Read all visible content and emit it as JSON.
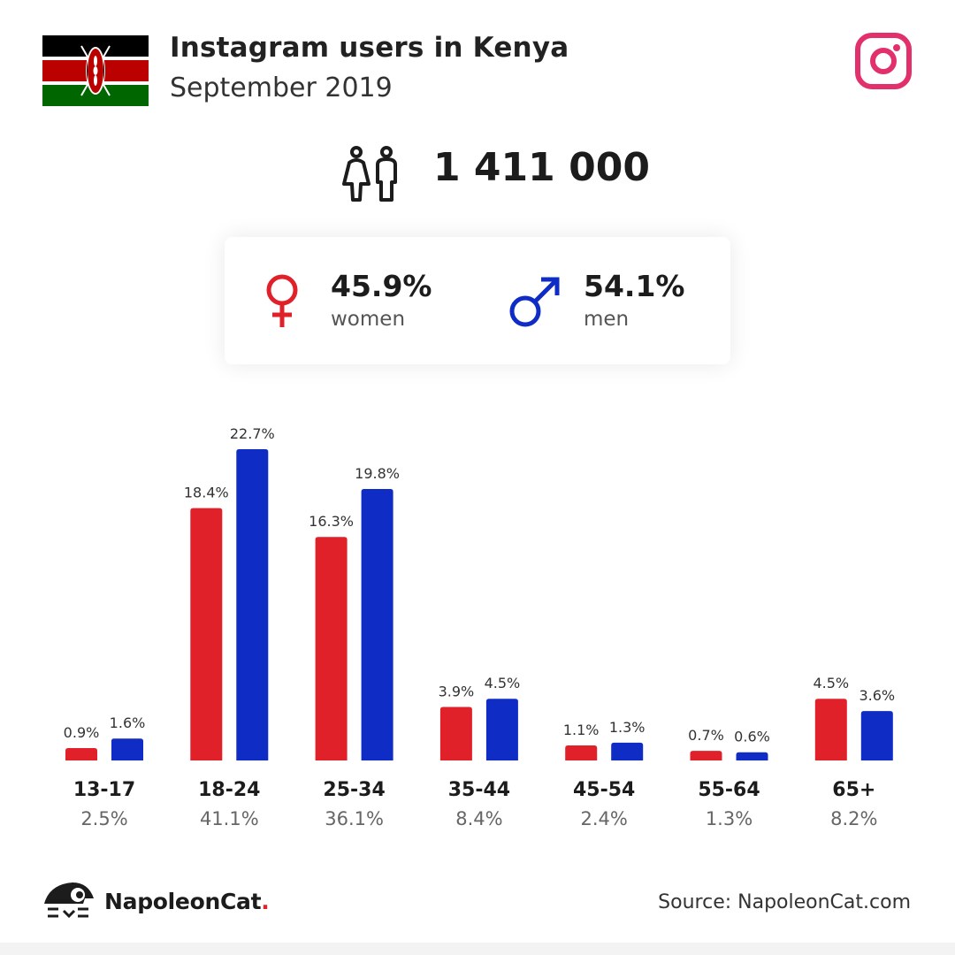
{
  "header": {
    "title": "Instagram users in Kenya",
    "subtitle": "September 2019"
  },
  "total_users": "1 411 000",
  "gender": {
    "women": {
      "percent": "45.9%",
      "label": "women"
    },
    "men": {
      "percent": "54.1%",
      "label": "men"
    }
  },
  "chart_data": {
    "type": "bar",
    "categories": [
      "13-17",
      "18-24",
      "25-34",
      "35-44",
      "45-54",
      "55-64",
      "65+"
    ],
    "category_totals": [
      "2.5%",
      "41.1%",
      "36.1%",
      "8.4%",
      "2.4%",
      "1.3%",
      "8.2%"
    ],
    "series": [
      {
        "values": [
          0.9,
          18.4,
          16.3,
          3.9,
          1.1,
          0.7,
          4.5
        ],
        "labels": [
          "0.9%",
          "18.4%",
          "16.3%",
          "3.9%",
          "1.1%",
          "0.7%",
          "4.5%"
        ],
        "color": "#e0212a"
      },
      {
        "values": [
          1.6,
          22.7,
          19.8,
          4.5,
          1.3,
          0.6,
          3.6
        ],
        "labels": [
          "1.6%",
          "22.7%",
          "19.8%",
          "4.5%",
          "1.3%",
          "0.6%",
          "3.6%"
        ],
        "color": "#0f2cc4"
      }
    ],
    "title": "",
    "xlabel": "",
    "ylabel": "",
    "ylim": [
      0,
      22.7
    ],
    "grid": false
  },
  "colors": {
    "women": "#e0212a",
    "men": "#0f2cc4",
    "instagram": "#e1306c"
  },
  "icons": {
    "flag": "kenya-flag",
    "brand": "instagram-icon",
    "users": "users-icon",
    "female": "female-icon",
    "male": "male-icon"
  },
  "footer": {
    "brand_name": "NapoleonCat",
    "brand_dot": ".",
    "source": "Source: NapoleonCat.com"
  }
}
